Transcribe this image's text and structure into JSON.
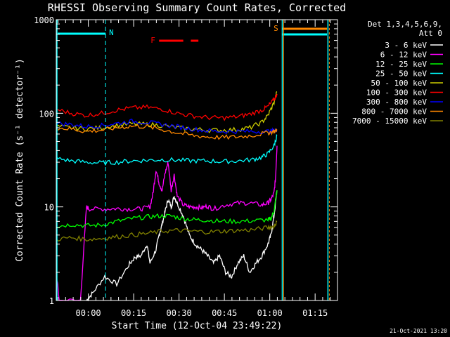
{
  "chart_data": {
    "type": "line",
    "title": "RHESSI Observing Summary Count Rates, Corrected",
    "xlabel": "Start Time (12-Oct-04 23:49:22)",
    "ylabel": "Corrected Count Rate (s⁻¹ detector⁻¹)",
    "y_scale": "log",
    "ylim": [
      1,
      1000
    ],
    "x_unit": "minutes after 12-Oct-04 23:49:22",
    "xlim": [
      0,
      93
    ],
    "x_ticks": [
      {
        "label": "00:00",
        "minutes": 10.6
      },
      {
        "label": "00:15",
        "minutes": 25.6
      },
      {
        "label": "00:30",
        "minutes": 40.6
      },
      {
        "label": "00:45",
        "minutes": 55.6
      },
      {
        "label": "01:00",
        "minutes": 70.6
      },
      {
        "label": "01:15",
        "minutes": 85.6
      }
    ],
    "y_ticks": [
      "1",
      "10",
      "100",
      "1000"
    ],
    "legend_position": "right",
    "legend_header": [
      "Det 1,3,4,5,6,9,",
      "Att 0"
    ],
    "footer_date": "21-Oct-2021 13:20",
    "annotations": {
      "night_start_label": "N",
      "night_start_minutes": 16.3,
      "saa_label": "S",
      "saa_minutes": 74.2,
      "flare_label": "F",
      "flare_segments_minutes": [
        [
          34,
          42
        ],
        [
          44.5,
          47
        ]
      ],
      "boundary_minutes": [
        0,
        74.5,
        89.6
      ]
    },
    "series": [
      {
        "name": "3 - 6 keV",
        "color": "#ffffff",
        "x": [
          10,
          12,
          16,
          20,
          24,
          26,
          28,
          30,
          31,
          33,
          34,
          35,
          36,
          37,
          38,
          39,
          40,
          42,
          44,
          46,
          48,
          50,
          52,
          54,
          56,
          58,
          60,
          62,
          64,
          66,
          68,
          70,
          71,
          72,
          73
        ],
        "y": [
          1,
          1.2,
          1.8,
          1.5,
          2.4,
          2.9,
          3,
          4,
          2.5,
          3.5,
          5,
          6.5,
          9,
          12,
          10,
          13,
          11,
          8,
          5,
          4,
          3.5,
          3,
          2.5,
          3,
          2,
          1.8,
          2.5,
          3,
          2,
          2.5,
          3,
          4,
          5,
          8,
          15
        ]
      },
      {
        "name": "6 - 12 keV",
        "color": "#ff00ff",
        "x": [
          0,
          1,
          8,
          10,
          11,
          16,
          20,
          24,
          28,
          31,
          32,
          33,
          34,
          35,
          36,
          37,
          38,
          39,
          40,
          42,
          44,
          46,
          48,
          50,
          52,
          56,
          60,
          64,
          68,
          70,
          71,
          72,
          72.5,
          73
        ],
        "y": [
          2,
          1,
          1,
          10,
          9.5,
          9.5,
          9.6,
          9.5,
          9.5,
          10,
          14,
          25,
          18,
          15,
          23,
          30,
          15,
          22,
          13,
          10.5,
          10,
          10,
          9.8,
          10.2,
          9.5,
          10.5,
          11,
          11,
          10.5,
          11,
          12,
          14,
          20,
          45
        ]
      },
      {
        "name": "12 - 25 keV",
        "color": "#00ff00",
        "x": [
          0,
          5,
          10,
          15,
          20,
          25,
          30,
          34,
          38,
          42,
          46,
          50,
          55,
          60,
          65,
          70,
          71,
          72,
          73
        ],
        "y": [
          6.2,
          6.5,
          6.3,
          6.4,
          7,
          7.5,
          7.8,
          8,
          8,
          7.5,
          7.3,
          7.2,
          7,
          7,
          7.1,
          7.3,
          7.5,
          9,
          15
        ]
      },
      {
        "name": "25 - 50 keV",
        "color": "#00ffff",
        "x": [
          0,
          5,
          10,
          15,
          20,
          25,
          30,
          35,
          40,
          45,
          50,
          55,
          60,
          65,
          68,
          70,
          72,
          73
        ],
        "y": [
          33,
          31,
          30,
          29.5,
          30,
          31,
          31.5,
          32,
          31.5,
          31,
          31,
          30.5,
          31,
          32,
          34,
          37,
          45,
          58
        ]
      },
      {
        "name": "50 - 100 keV",
        "color": "#cccc00",
        "x": [
          0,
          5,
          10,
          15,
          20,
          25,
          30,
          35,
          40,
          45,
          50,
          55,
          60,
          64,
          68,
          70,
          72,
          73
        ],
        "y": [
          72,
          70,
          68,
          70,
          74,
          77,
          76,
          74,
          70,
          68,
          66,
          66,
          67,
          70,
          80,
          95,
          130,
          170
        ]
      },
      {
        "name": "100 - 300 keV",
        "color": "#ff0000",
        "x": [
          0,
          5,
          10,
          15,
          20,
          25,
          30,
          35,
          40,
          45,
          50,
          55,
          60,
          64,
          68,
          70,
          72,
          73
        ],
        "y": [
          110,
          100,
          95,
          100,
          108,
          114,
          116,
          111,
          100,
          94,
          90,
          89,
          92,
          98,
          108,
          118,
          140,
          160
        ]
      },
      {
        "name": "300 - 800 keV",
        "color": "#0000ff",
        "x": [
          0,
          5,
          10,
          15,
          20,
          25,
          30,
          35,
          40,
          45,
          50,
          55,
          60,
          65,
          70,
          72,
          73
        ],
        "y": [
          78,
          76,
          72,
          74,
          78,
          82,
          80,
          76,
          72,
          68,
          65,
          64,
          64,
          64,
          64,
          65,
          66
        ]
      },
      {
        "name": "800 - 7000 keV",
        "color": "#ff8800",
        "x": [
          0,
          5,
          10,
          15,
          20,
          25,
          30,
          35,
          40,
          45,
          50,
          55,
          60,
          65,
          70,
          72,
          73
        ],
        "y": [
          70,
          68,
          64,
          66,
          70,
          73,
          72,
          67,
          62,
          58,
          56,
          55,
          56,
          58,
          62,
          64,
          66
        ]
      },
      {
        "name": "7000 - 15000 keV",
        "color": "#808000",
        "x": [
          0,
          5,
          10,
          15,
          20,
          25,
          30,
          35,
          40,
          45,
          50,
          55,
          60,
          65,
          70,
          72,
          73
        ],
        "y": [
          4.5,
          4.7,
          4.5,
          4.6,
          4.8,
          5,
          5.2,
          5.5,
          5.6,
          5.5,
          5.4,
          5.5,
          5.6,
          5.7,
          6,
          6.2,
          7
        ]
      }
    ]
  }
}
